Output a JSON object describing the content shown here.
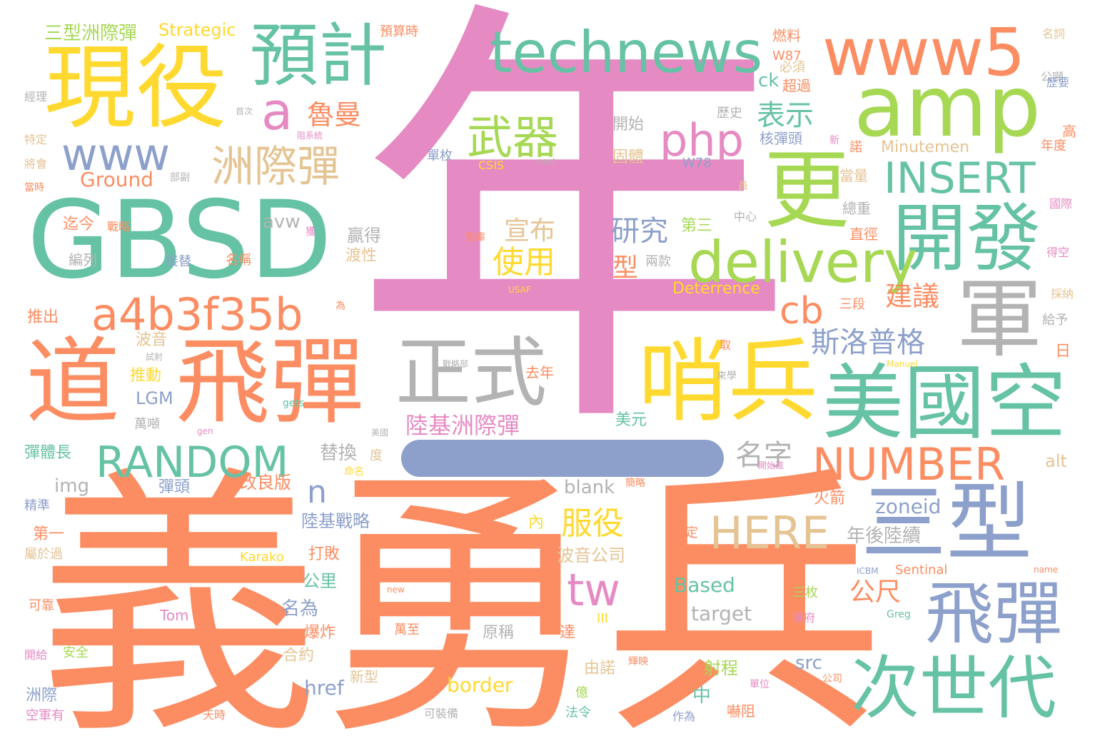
{
  "colors": {
    "pink": "#e68ac3",
    "orange": "#fc8d62",
    "teal": "#66c2a5",
    "blue": "#8da0cb",
    "lime": "#a6d854",
    "yellow": "#ffd92f",
    "tan": "#e5c494",
    "gray": "#b3b3b3"
  },
  "words": [
    "年",
    "義勇兵",
    "GBSD",
    "道",
    "飛彈",
    "美國空",
    "現役",
    "軍",
    "更",
    "amp",
    "正式",
    "哨兵",
    "三型",
    "www5",
    "飛彈",
    "次世代",
    "開發",
    "technews",
    "預計",
    "delivery",
    "a4b3f35b",
    "www",
    "RANDOM",
    "NUMBER",
    "HERE",
    "INSERT",
    "php",
    "武器",
    "洲際彈",
    "a",
    "tw",
    "cb",
    "n",
    "斯洛普格",
    "魯曼",
    "使用",
    "服役",
    "研究",
    "表示",
    "名字",
    "宣布",
    "建議",
    "陸基洲際彈",
    "公尺",
    "Ground",
    "Strategic",
    "三型洲際彈",
    "img",
    "blank",
    "zoneid",
    "Based",
    "target",
    "src",
    "border",
    "href",
    "Deterrence",
    "Minutemen",
    "avw",
    "alt",
    "LGM",
    "Sentinal",
    "ck",
    "W87",
    "W78",
    "CSIS",
    "Karako",
    "USAF",
    "ICBM",
    "Manuel",
    "Greg",
    "Tom",
    "name",
    "new",
    "gen",
    "gets",
    "next",
    "III",
    "替換",
    "年後陸續",
    "波音公司",
    "陸基戰略",
    "改良版",
    "彈頭",
    "打敗",
    "名為",
    "公里",
    "爆炸",
    "合約",
    "新型",
    "推動",
    "波音",
    "推出",
    "彈體長",
    "精準",
    "第一",
    "屬於過",
    "可靠",
    "開給",
    "洲際",
    "空軍有",
    "安全",
    "天時",
    "可裝備",
    "法令",
    "億",
    "達",
    "原稱",
    "萬至",
    "射程",
    "中",
    "嚇阻",
    "公司",
    "單位",
    "三枚",
    "華府",
    "內",
    "火箭",
    "規定",
    "贏得",
    "渡性",
    "第三",
    "兩款",
    "型",
    "美元",
    "去年",
    "取",
    "日",
    "給予",
    "採納",
    "得空",
    "國際",
    "歷史",
    "開始",
    "固體",
    "核彈頭",
    "單枚",
    "中心",
    "總重",
    "直徑",
    "當量",
    "三段",
    "超過",
    "必須",
    "燃料",
    "預算時",
    "名詞",
    "公噸",
    "歷要",
    "高",
    "年度",
    "新",
    "諾",
    "員",
    "首次",
    "阻系統",
    "部副",
    "接替",
    "戰略",
    "迄今",
    "編列",
    "名稱",
    "獲",
    "智庫",
    "為",
    "試射",
    "戰略部",
    "萬噸",
    "美國",
    "命名",
    "度",
    "簡略",
    "輝映",
    "作為",
    "由諾",
    "經理",
    "特定",
    "將會",
    "當時",
    "開始進",
    "來學"
  ]
}
